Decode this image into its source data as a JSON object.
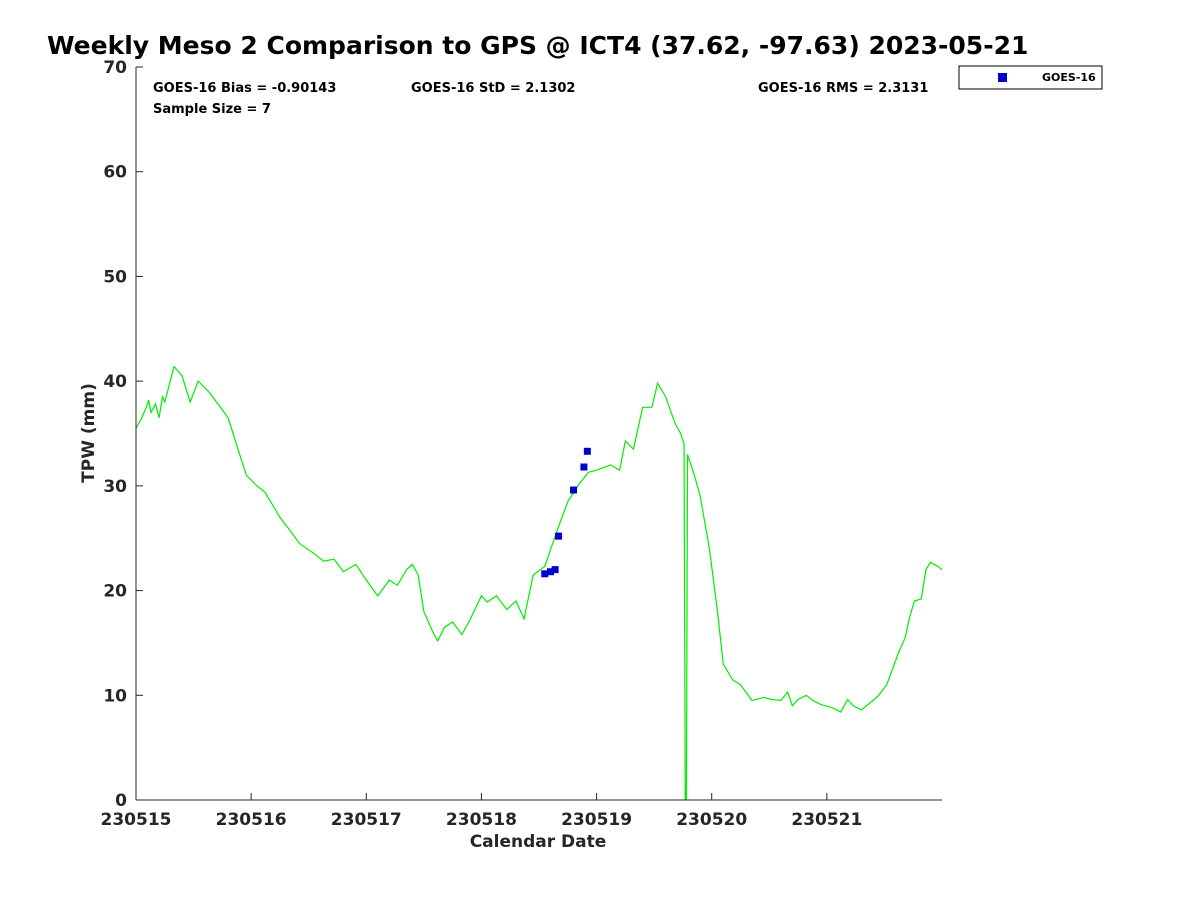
{
  "chart_data": {
    "type": "line",
    "title": "Weekly Meso 2 Comparison to GPS @ ICT4 (37.62, -97.63) 2023-05-21",
    "xlabel": "Calendar Date",
    "ylabel": "TPW (mm)",
    "xlim": [
      230515,
      230522
    ],
    "ylim": [
      0,
      70
    ],
    "grid": false,
    "x_tick_labels": [
      "230515",
      "230516",
      "230517",
      "230518",
      "230519",
      "230520",
      "230521"
    ],
    "y_ticks": [
      0,
      10,
      20,
      30,
      40,
      50,
      60,
      70
    ],
    "stats": {
      "bias": "GOES-16 Bias = -0.90143",
      "std": "GOES-16 StD = 2.1302",
      "rms": "GOES-16 RMS = 2.3131",
      "sample_size": "Sample Size = 7"
    },
    "legend": {
      "placement": "top-right-outside",
      "entries": [
        {
          "label": "GOES-16",
          "color": "#0000cc"
        }
      ]
    },
    "series": [
      {
        "type": "line",
        "color": "#00ee00",
        "points": [
          [
            230515.0,
            35.5
          ],
          [
            230515.05,
            36.5
          ],
          [
            230515.09,
            37.5
          ],
          [
            230515.11,
            38.2
          ],
          [
            230515.13,
            37.0
          ],
          [
            230515.17,
            37.8
          ],
          [
            230515.2,
            36.5
          ],
          [
            230515.23,
            38.5
          ],
          [
            230515.25,
            38.0
          ],
          [
            230515.33,
            41.4
          ],
          [
            230515.4,
            40.5
          ],
          [
            230515.47,
            38.0
          ],
          [
            230515.54,
            40.0
          ],
          [
            230515.63,
            39.0
          ],
          [
            230515.7,
            38.0
          ],
          [
            230515.8,
            36.5
          ],
          [
            230515.9,
            33.0
          ],
          [
            230515.96,
            31.0
          ],
          [
            230516.05,
            30.0
          ],
          [
            230516.12,
            29.4
          ],
          [
            230516.25,
            27.0
          ],
          [
            230516.32,
            26.0
          ],
          [
            230516.42,
            24.5
          ],
          [
            230516.55,
            23.5
          ],
          [
            230516.63,
            22.8
          ],
          [
            230516.72,
            23.0
          ],
          [
            230516.8,
            21.8
          ],
          [
            230516.91,
            22.5
          ],
          [
            230517.0,
            21.0
          ],
          [
            230517.1,
            19.5
          ],
          [
            230517.2,
            21.0
          ],
          [
            230517.27,
            20.5
          ],
          [
            230517.35,
            22.0
          ],
          [
            230517.4,
            22.5
          ],
          [
            230517.45,
            21.5
          ],
          [
            230517.5,
            18.0
          ],
          [
            230517.58,
            16.0
          ],
          [
            230517.62,
            15.2
          ],
          [
            230517.68,
            16.5
          ],
          [
            230517.75,
            17.0
          ],
          [
            230517.83,
            15.8
          ],
          [
            230517.9,
            17.2
          ],
          [
            230518.0,
            19.5
          ],
          [
            230518.05,
            18.9
          ],
          [
            230518.13,
            19.5
          ],
          [
            230518.22,
            18.2
          ],
          [
            230518.3,
            19.0
          ],
          [
            230518.37,
            17.3
          ],
          [
            230518.45,
            21.5
          ],
          [
            230518.55,
            22.3
          ],
          [
            230518.65,
            25.5
          ],
          [
            230518.75,
            28.5
          ],
          [
            230518.85,
            30.2
          ],
          [
            230518.93,
            31.3
          ],
          [
            230519.0,
            31.5
          ],
          [
            230519.12,
            32.0
          ],
          [
            230519.2,
            31.5
          ],
          [
            230519.25,
            34.3
          ],
          [
            230519.32,
            33.5
          ],
          [
            230519.4,
            37.5
          ],
          [
            230519.48,
            37.5
          ],
          [
            230519.53,
            39.8
          ],
          [
            230519.6,
            38.5
          ],
          [
            230519.68,
            36.0
          ],
          [
            230519.73,
            35.0
          ],
          [
            230519.76,
            34.0
          ],
          [
            230519.77,
            0.0
          ],
          [
            230519.78,
            0.0
          ],
          [
            230519.79,
            33.0
          ],
          [
            230519.85,
            31.0
          ],
          [
            230519.9,
            29.0
          ],
          [
            230519.98,
            24.0
          ],
          [
            230520.05,
            18.0
          ],
          [
            230520.1,
            13.0
          ],
          [
            230520.18,
            11.5
          ],
          [
            230520.25,
            11.0
          ],
          [
            230520.35,
            9.5
          ],
          [
            230520.45,
            9.8
          ],
          [
            230520.52,
            9.6
          ],
          [
            230520.6,
            9.5
          ],
          [
            230520.66,
            10.3
          ],
          [
            230520.7,
            9.0
          ],
          [
            230520.75,
            9.6
          ],
          [
            230520.82,
            10.0
          ],
          [
            230520.88,
            9.5
          ],
          [
            230520.95,
            9.1
          ],
          [
            230521.05,
            8.8
          ],
          [
            230521.12,
            8.4
          ],
          [
            230521.18,
            9.6
          ],
          [
            230521.23,
            9.0
          ],
          [
            230521.3,
            8.6
          ],
          [
            230521.4,
            9.5
          ],
          [
            230521.45,
            10.0
          ],
          [
            230521.52,
            11.0
          ],
          [
            230521.57,
            12.5
          ],
          [
            230521.62,
            14.0
          ],
          [
            230521.68,
            15.5
          ],
          [
            230521.72,
            17.5
          ],
          [
            230521.76,
            19.0
          ],
          [
            230521.82,
            19.2
          ],
          [
            230521.86,
            22.0
          ],
          [
            230521.9,
            22.7
          ],
          [
            230521.95,
            22.4
          ],
          [
            230522.0,
            22.0
          ]
        ]
      },
      {
        "name": "GOES-16",
        "type": "scatter",
        "color": "#0000cc",
        "points": [
          [
            230518.55,
            21.6
          ],
          [
            230518.6,
            21.8
          ],
          [
            230518.64,
            22.0
          ],
          [
            230518.67,
            25.2
          ],
          [
            230518.8,
            29.6
          ],
          [
            230518.89,
            31.8
          ],
          [
            230518.92,
            33.3
          ]
        ]
      }
    ]
  }
}
